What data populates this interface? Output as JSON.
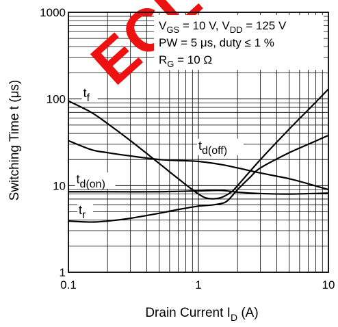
{
  "chart_data": {
    "type": "line",
    "xscale": "log",
    "yscale": "log",
    "xlim": [
      0.1,
      10
    ],
    "ylim": [
      1,
      1000
    ],
    "grid": true,
    "xlabel": "Drain Current  I",
    "xlabel_sub": "D",
    "xlabel_unit": " (A)",
    "ylabel": "Switching Time  t  (μs)",
    "x_ticks": [
      {
        "value": 0.1,
        "label": "0.1"
      },
      {
        "value": 1,
        "label": "1"
      },
      {
        "value": 10,
        "label": "10"
      }
    ],
    "y_ticks": [
      {
        "value": 1,
        "label": "1"
      },
      {
        "value": 10,
        "label": "10"
      },
      {
        "value": 100,
        "label": "100"
      },
      {
        "value": 1000,
        "label": "1000"
      }
    ],
    "conditions": {
      "line1": {
        "v1": "V",
        "v1_sub": "GS",
        "v1_rest": " = 10 V, V",
        "v2_sub": "DD",
        "v2_rest": " = 125 V"
      },
      "line2": "PW  = 5 μs, duty ≤ 1 %",
      "line3": {
        "r": "R",
        "r_sub": "G",
        "r_rest": " = 10 Ω"
      }
    },
    "watermark": "ECL",
    "series": [
      {
        "name": "t_f",
        "label_main": "t",
        "label_sub": "f",
        "x": [
          0.1,
          0.15,
          0.2,
          0.3,
          0.5,
          0.7,
          1.0,
          1.2,
          1.5,
          1.8,
          2,
          3,
          5,
          7,
          10
        ],
        "y": [
          95,
          70,
          52,
          33,
          18,
          12,
          8,
          7.1,
          7.3,
          8.5,
          10,
          20,
          45,
          75,
          130
        ]
      },
      {
        "name": "t_d(off)",
        "label_main": "t",
        "label_sub": "d(off)",
        "x": [
          0.1,
          0.15,
          0.2,
          0.3,
          0.5,
          0.7,
          1,
          1.5,
          2,
          3,
          5,
          7,
          10
        ],
        "y": [
          33,
          26,
          24,
          22,
          20,
          19.5,
          19,
          17.5,
          16,
          14,
          12,
          10.5,
          9
        ]
      },
      {
        "name": "t_d(on)",
        "label_main": "t",
        "label_sub": "d(on)",
        "x": [
          0.1,
          0.2,
          0.5,
          1,
          1.5,
          2,
          3,
          5,
          10
        ],
        "y": [
          8.5,
          8.5,
          8.5,
          8.7,
          8.8,
          8.4,
          8.1,
          8.0,
          8.2
        ]
      },
      {
        "name": "t_r",
        "label_main": "t",
        "label_sub": "r",
        "x": [
          0.1,
          0.15,
          0.2,
          0.3,
          0.5,
          0.7,
          1,
          1.3,
          1.6,
          1.8,
          2,
          2.5,
          3,
          5,
          7,
          10
        ],
        "y": [
          3.9,
          3.8,
          3.9,
          4.2,
          4.8,
          5.3,
          5.8,
          6.0,
          6.4,
          7.5,
          9,
          12.5,
          16,
          24,
          30,
          38
        ]
      }
    ]
  }
}
